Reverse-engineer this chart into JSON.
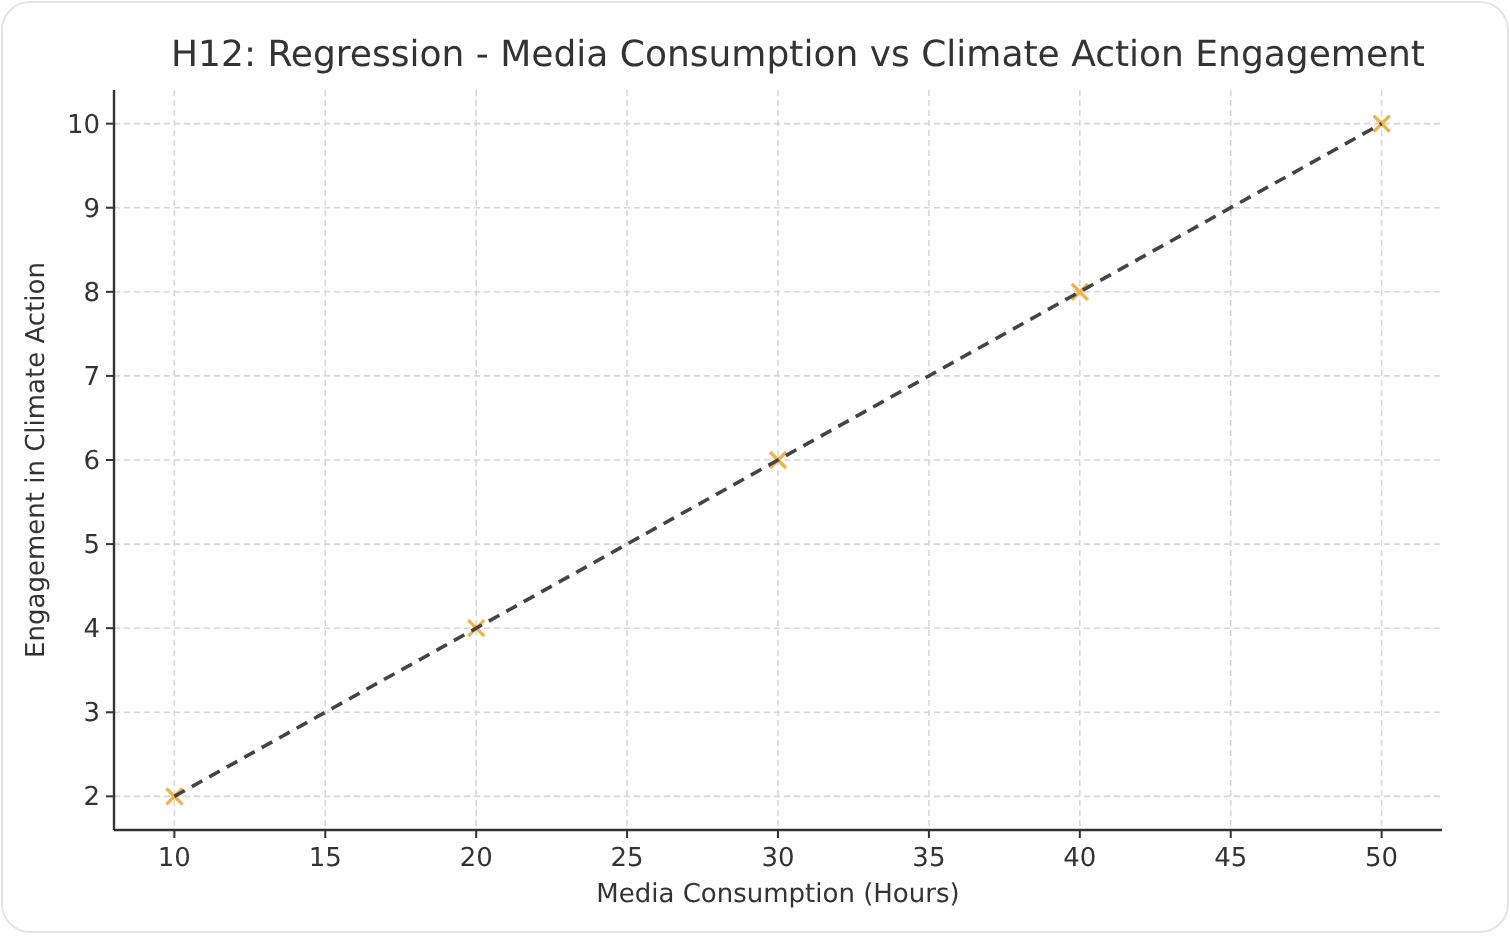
{
  "chart_data": {
    "type": "scatter",
    "title": "H12: Regression - Media Consumption vs Climate Action Engagement",
    "xlabel": "Media Consumption (Hours)",
    "ylabel": "Engagement in Climate Action",
    "xlim": [
      8,
      52
    ],
    "xticks": [
      10,
      15,
      20,
      25,
      30,
      35,
      40,
      45,
      50
    ],
    "ylim": [
      1.6,
      10.4
    ],
    "yticks": [
      2,
      3,
      4,
      5,
      6,
      7,
      8,
      9,
      10
    ],
    "grid": true,
    "series": [
      {
        "color": "#f5b041",
        "marker": "cross",
        "x": [
          10,
          20,
          30,
          40,
          50
        ],
        "values": [
          2,
          4,
          6,
          8,
          10
        ]
      },
      {
        "type": "line",
        "color": "#444444",
        "line_style": "dashed",
        "marker": "none",
        "x": [
          10,
          50
        ],
        "values": [
          2,
          10
        ]
      }
    ]
  }
}
